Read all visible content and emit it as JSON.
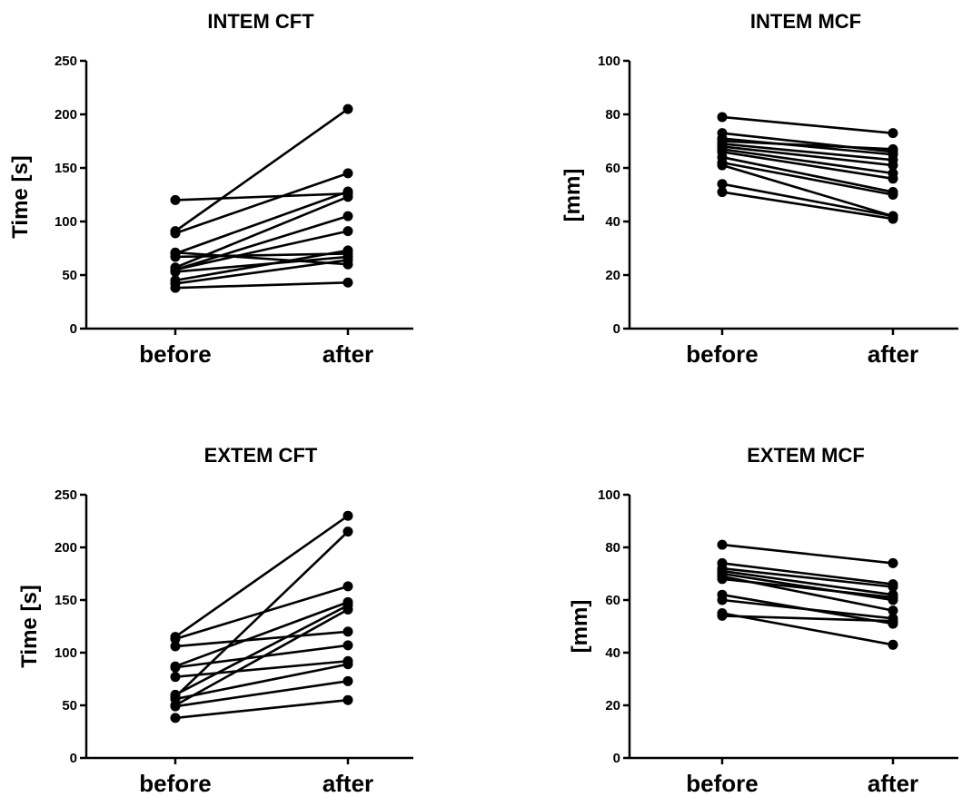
{
  "chart_data": [
    {
      "type": "line",
      "title": "INTEM CFT",
      "ylabel": "Time [s]",
      "xlabel": "",
      "categories": [
        "before",
        "after"
      ],
      "ylim": [
        0,
        250
      ],
      "yticks": [
        0,
        50,
        100,
        150,
        200,
        250
      ],
      "grid": false,
      "pairs": [
        [
          120,
          126
        ],
        [
          91,
          205
        ],
        [
          89,
          145
        ],
        [
          71,
          60
        ],
        [
          70,
          128
        ],
        [
          67,
          70
        ],
        [
          57,
          123
        ],
        [
          55,
          105
        ],
        [
          55,
          91
        ],
        [
          53,
          67
        ],
        [
          45,
          73
        ],
        [
          42,
          64
        ],
        [
          38,
          43
        ]
      ]
    },
    {
      "type": "line",
      "title": "INTEM MCF",
      "ylabel": "[mm]",
      "xlabel": "",
      "categories": [
        "before",
        "after"
      ],
      "ylim": [
        0,
        100
      ],
      "yticks": [
        0,
        20,
        40,
        60,
        80,
        100
      ],
      "grid": false,
      "pairs": [
        [
          79,
          73
        ],
        [
          73,
          66
        ],
        [
          71,
          65
        ],
        [
          70,
          67
        ],
        [
          69,
          63
        ],
        [
          68,
          61
        ],
        [
          67,
          58
        ],
        [
          66,
          56
        ],
        [
          64,
          51
        ],
        [
          62,
          50
        ],
        [
          61,
          42
        ],
        [
          54,
          42
        ],
        [
          51,
          41
        ]
      ]
    },
    {
      "type": "line",
      "title": "EXTEM CFT",
      "ylabel": "Time [s]",
      "xlabel": "",
      "categories": [
        "before",
        "after"
      ],
      "ylim": [
        0,
        250
      ],
      "yticks": [
        0,
        50,
        100,
        150,
        200,
        250
      ],
      "grid": false,
      "pairs": [
        [
          115,
          230
        ],
        [
          113,
          163
        ],
        [
          106,
          120
        ],
        [
          87,
          148
        ],
        [
          86,
          107
        ],
        [
          77,
          92
        ],
        [
          60,
          145
        ],
        [
          58,
          215
        ],
        [
          56,
          89
        ],
        [
          50,
          141
        ],
        [
          49,
          73
        ],
        [
          38,
          55
        ]
      ]
    },
    {
      "type": "line",
      "title": "EXTEM MCF",
      "ylabel": "[mm]",
      "xlabel": "",
      "categories": [
        "before",
        "after"
      ],
      "ylim": [
        0,
        100
      ],
      "yticks": [
        0,
        20,
        40,
        60,
        80,
        100
      ],
      "grid": false,
      "pairs": [
        [
          81,
          74
        ],
        [
          74,
          66
        ],
        [
          72,
          65
        ],
        [
          71,
          62
        ],
        [
          70,
          60
        ],
        [
          69,
          56
        ],
        [
          68,
          61
        ],
        [
          62,
          51
        ],
        [
          60,
          53
        ],
        [
          55,
          43
        ],
        [
          54,
          52
        ]
      ]
    }
  ]
}
